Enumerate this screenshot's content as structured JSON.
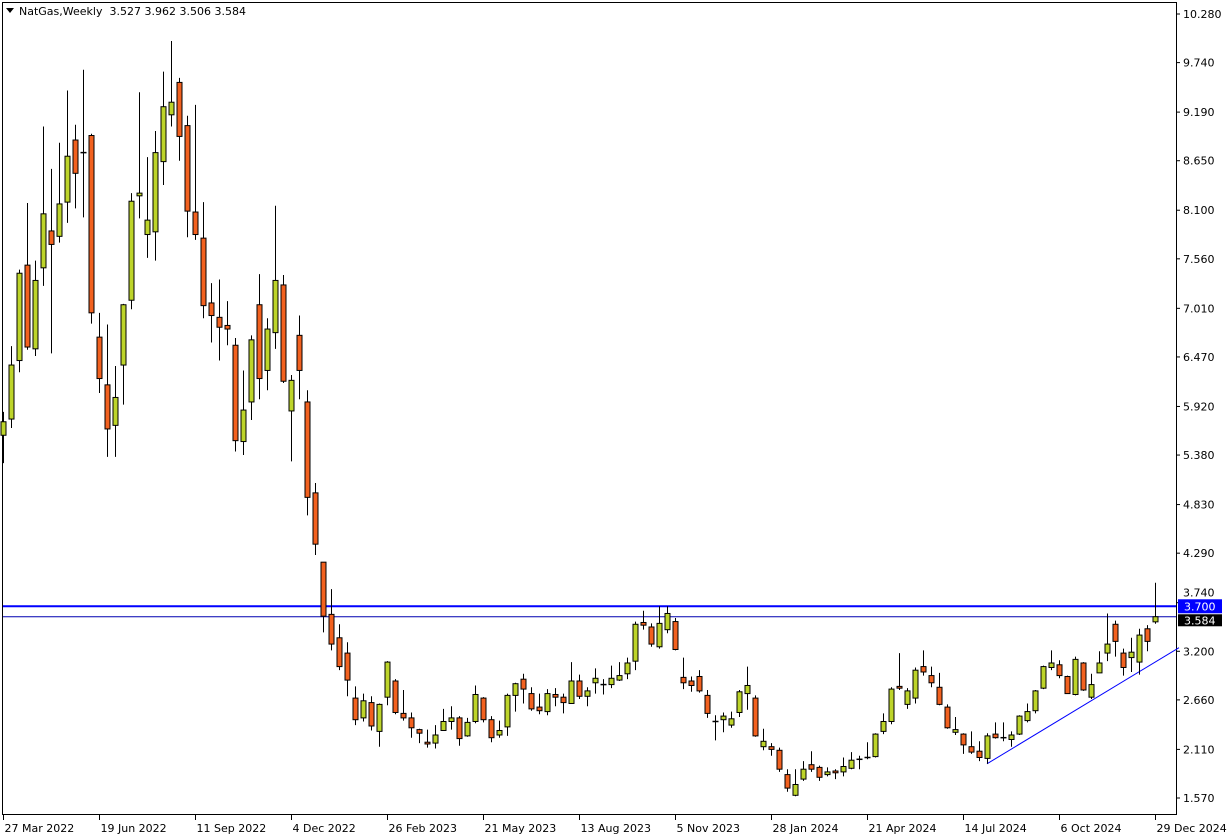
{
  "header": {
    "symbol_timeframe": "NatGas,Weekly",
    "ohlc_readout": "3.527 3.962 3.506 3.584"
  },
  "colors": {
    "bull": "#bdd42a",
    "bear": "#f2611f",
    "outline": "#000000",
    "resistance_line": "#0000ff",
    "bid_line": "#0000b0",
    "trendline": "#0000ff",
    "resistance_label_bg": "#0000ff",
    "bid_label_bg": "#000000"
  },
  "chart_data": {
    "type": "candlestick",
    "title": "NatGas,Weekly",
    "ylim": [
      1.57,
      10.28
    ],
    "y_ticks": [
      "10.280",
      "9.740",
      "9.190",
      "8.650",
      "8.100",
      "7.560",
      "7.010",
      "6.470",
      "5.920",
      "5.380",
      "4.830",
      "4.290",
      "3.740",
      "3.200",
      "2.660",
      "2.110",
      "1.570"
    ],
    "x_ticks": [
      {
        "date": "2022-03-27",
        "label": "27 Mar 2022"
      },
      {
        "date": "2022-06-19",
        "label": "19 Jun 2022"
      },
      {
        "date": "2022-09-11",
        "label": "11 Sep 2022"
      },
      {
        "date": "2022-12-04",
        "label": "4 Dec 2022"
      },
      {
        "date": "2023-02-26",
        "label": "26 Feb 2023"
      },
      {
        "date": "2023-05-21",
        "label": "21 May 2023"
      },
      {
        "date": "2023-08-13",
        "label": "13 Aug 2023"
      },
      {
        "date": "2023-11-05",
        "label": "5 Nov 2023"
      },
      {
        "date": "2024-01-28",
        "label": "28 Jan 2024"
      },
      {
        "date": "2024-04-21",
        "label": "21 Apr 2024"
      },
      {
        "date": "2024-07-14",
        "label": "14 Jul 2024"
      },
      {
        "date": "2024-10-06",
        "label": "6 Oct 2024"
      },
      {
        "date": "2024-12-29",
        "label": "29 Dec 2024"
      }
    ],
    "horizontal_lines": [
      {
        "price": 3.7,
        "label": "3.700",
        "style": "thick"
      },
      {
        "price": 3.584,
        "label": "3.584",
        "style": "thin"
      }
    ],
    "trendline": {
      "from": {
        "date": "2024-08-04",
        "price": 1.95
      },
      "to": {
        "date": "2025-01-19",
        "price": 3.24
      }
    },
    "candle_fields": [
      "date",
      "open",
      "high",
      "low",
      "close"
    ],
    "candles": [
      [
        "2022-03-27",
        5.6,
        5.86,
        5.29,
        5.75
      ],
      [
        "2022-04-03",
        5.78,
        6.59,
        5.68,
        6.38
      ],
      [
        "2022-04-10",
        6.43,
        7.44,
        6.3,
        7.4
      ],
      [
        "2022-04-17",
        7.49,
        8.18,
        6.55,
        6.58
      ],
      [
        "2022-04-24",
        6.56,
        7.54,
        6.48,
        7.32
      ],
      [
        "2022-05-01",
        7.46,
        9.03,
        7.26,
        8.06
      ],
      [
        "2022-05-08",
        7.87,
        8.56,
        6.51,
        7.72
      ],
      [
        "2022-05-15",
        7.81,
        8.85,
        7.74,
        8.17
      ],
      [
        "2022-05-22",
        8.19,
        9.43,
        7.96,
        8.7
      ],
      [
        "2022-05-29",
        8.88,
        9.05,
        8.12,
        8.51
      ],
      [
        "2022-06-05",
        8.74,
        9.66,
        8.02,
        8.74
      ],
      [
        "2022-06-12",
        8.93,
        8.95,
        6.84,
        6.96
      ],
      [
        "2022-06-19",
        6.69,
        6.96,
        6.07,
        6.23
      ],
      [
        "2022-06-26",
        6.16,
        6.83,
        5.36,
        5.67
      ],
      [
        "2022-07-03",
        5.71,
        6.37,
        5.36,
        6.02
      ],
      [
        "2022-07-10",
        6.38,
        7.06,
        5.94,
        7.05
      ],
      [
        "2022-07-17",
        7.1,
        8.29,
        7.0,
        8.2
      ],
      [
        "2022-07-24",
        8.26,
        9.41,
        8.01,
        8.29
      ],
      [
        "2022-07-31",
        7.83,
        8.69,
        7.57,
        7.99
      ],
      [
        "2022-08-07",
        7.86,
        8.98,
        7.54,
        8.74
      ],
      [
        "2022-08-14",
        8.64,
        9.64,
        8.38,
        9.25
      ],
      [
        "2022-08-21",
        9.16,
        9.98,
        9.03,
        9.3
      ],
      [
        "2022-08-28",
        9.52,
        9.57,
        8.65,
        8.92
      ],
      [
        "2022-09-04",
        9.04,
        9.15,
        7.8,
        8.09
      ],
      [
        "2022-09-11",
        8.08,
        9.27,
        7.77,
        7.83
      ],
      [
        "2022-09-18",
        7.79,
        8.19,
        6.9,
        7.04
      ],
      [
        "2022-09-25",
        7.07,
        7.29,
        6.63,
        6.93
      ],
      [
        "2022-10-02",
        6.91,
        7.33,
        6.43,
        6.8
      ],
      [
        "2022-10-09",
        6.82,
        7.09,
        6.6,
        6.78
      ],
      [
        "2022-10-16",
        6.6,
        6.68,
        5.42,
        5.54
      ],
      [
        "2022-10-23",
        5.53,
        6.32,
        5.38,
        5.88
      ],
      [
        "2022-10-30",
        5.97,
        6.71,
        5.77,
        6.66
      ],
      [
        "2022-11-06",
        7.05,
        7.39,
        6.0,
        6.23
      ],
      [
        "2022-11-13",
        6.32,
        6.9,
        6.1,
        6.78
      ],
      [
        "2022-11-20",
        6.74,
        8.15,
        6.56,
        7.32
      ],
      [
        "2022-11-27",
        7.27,
        7.38,
        6.18,
        6.2
      ],
      [
        "2022-12-04",
        5.87,
        6.27,
        5.31,
        6.21
      ],
      [
        "2022-12-11",
        6.71,
        6.93,
        6.0,
        6.32
      ],
      [
        "2022-12-18",
        5.97,
        6.1,
        4.71,
        4.91
      ],
      [
        "2022-12-25",
        4.96,
        5.07,
        4.27,
        4.39
      ],
      [
        "2023-01-01",
        4.19,
        4.19,
        3.41,
        3.59
      ],
      [
        "2023-01-08",
        3.61,
        3.89,
        3.21,
        3.28
      ],
      [
        "2023-01-15",
        3.35,
        3.5,
        2.99,
        3.03
      ],
      [
        "2023-01-22",
        3.18,
        3.3,
        2.7,
        2.88
      ],
      [
        "2023-01-29",
        2.68,
        2.81,
        2.38,
        2.44
      ],
      [
        "2023-02-05",
        2.46,
        2.73,
        2.42,
        2.65
      ],
      [
        "2023-02-12",
        2.63,
        2.7,
        2.32,
        2.37
      ],
      [
        "2023-02-19",
        2.31,
        2.62,
        2.14,
        2.61
      ],
      [
        "2023-02-26",
        2.69,
        3.09,
        2.6,
        3.08
      ],
      [
        "2023-03-05",
        2.87,
        2.89,
        2.5,
        2.52
      ],
      [
        "2023-03-12",
        2.51,
        2.77,
        2.43,
        2.46
      ],
      [
        "2023-03-19",
        2.46,
        2.52,
        2.24,
        2.35
      ],
      [
        "2023-03-26",
        2.33,
        2.34,
        2.18,
        2.29
      ],
      [
        "2023-04-02",
        2.19,
        2.33,
        2.13,
        2.17
      ],
      [
        "2023-04-09",
        2.18,
        2.38,
        2.12,
        2.27
      ],
      [
        "2023-04-16",
        2.32,
        2.56,
        2.32,
        2.42
      ],
      [
        "2023-04-23",
        2.42,
        2.59,
        2.33,
        2.46
      ],
      [
        "2023-04-30",
        2.46,
        2.48,
        2.15,
        2.23
      ],
      [
        "2023-05-07",
        2.26,
        2.46,
        2.25,
        2.41
      ],
      [
        "2023-05-14",
        2.42,
        2.82,
        2.4,
        2.72
      ],
      [
        "2023-05-21",
        2.68,
        2.69,
        2.41,
        2.44
      ],
      [
        "2023-05-28",
        2.44,
        2.48,
        2.19,
        2.24
      ],
      [
        "2023-06-04",
        2.27,
        2.43,
        2.24,
        2.32
      ],
      [
        "2023-06-11",
        2.36,
        2.73,
        2.26,
        2.71
      ],
      [
        "2023-06-18",
        2.71,
        2.85,
        2.53,
        2.84
      ],
      [
        "2023-06-25",
        2.89,
        2.95,
        2.62,
        2.78
      ],
      [
        "2023-07-02",
        2.73,
        2.8,
        2.54,
        2.56
      ],
      [
        "2023-07-09",
        2.58,
        2.73,
        2.5,
        2.54
      ],
      [
        "2023-07-16",
        2.53,
        2.78,
        2.49,
        2.73
      ],
      [
        "2023-07-23",
        2.72,
        2.79,
        2.59,
        2.69
      ],
      [
        "2023-07-30",
        2.69,
        2.73,
        2.51,
        2.63
      ],
      [
        "2023-08-06",
        2.62,
        3.08,
        2.62,
        2.87
      ],
      [
        "2023-08-13",
        2.87,
        2.94,
        2.67,
        2.7
      ],
      [
        "2023-08-20",
        2.7,
        2.8,
        2.59,
        2.76
      ],
      [
        "2023-08-27",
        2.85,
        3.01,
        2.73,
        2.9
      ],
      [
        "2023-09-03",
        2.83,
        2.89,
        2.72,
        2.83
      ],
      [
        "2023-09-10",
        2.83,
        3.04,
        2.79,
        2.9
      ],
      [
        "2023-09-17",
        2.88,
        3.08,
        2.87,
        2.93
      ],
      [
        "2023-09-24",
        2.95,
        3.13,
        2.89,
        3.07
      ],
      [
        "2023-10-01",
        3.09,
        3.53,
        2.99,
        3.5
      ],
      [
        "2023-10-08",
        3.52,
        3.65,
        3.44,
        3.49
      ],
      [
        "2023-10-15",
        3.47,
        3.51,
        3.25,
        3.28
      ],
      [
        "2023-10-22",
        3.25,
        3.7,
        3.23,
        3.51
      ],
      [
        "2023-10-29",
        3.44,
        3.7,
        3.4,
        3.62
      ],
      [
        "2023-11-05",
        3.53,
        3.57,
        3.21,
        3.22
      ],
      [
        "2023-11-12",
        2.91,
        3.13,
        2.78,
        2.85
      ],
      [
        "2023-11-19",
        2.87,
        2.92,
        2.75,
        2.82
      ],
      [
        "2023-11-26",
        2.92,
        2.99,
        2.74,
        2.76
      ],
      [
        "2023-12-03",
        2.71,
        2.77,
        2.46,
        2.51
      ],
      [
        "2023-12-10",
        2.42,
        2.49,
        2.21,
        2.42
      ],
      [
        "2023-12-17",
        2.44,
        2.52,
        2.3,
        2.48
      ],
      [
        "2023-12-24",
        2.38,
        2.53,
        2.35,
        2.45
      ],
      [
        "2023-12-31",
        2.52,
        2.77,
        2.47,
        2.75
      ],
      [
        "2024-01-07",
        2.73,
        3.03,
        2.55,
        2.82
      ],
      [
        "2024-01-14",
        2.68,
        2.71,
        2.25,
        2.26
      ],
      [
        "2024-01-21",
        2.14,
        2.34,
        2.1,
        2.2
      ],
      [
        "2024-01-28",
        2.14,
        2.18,
        2.04,
        2.11
      ],
      [
        "2024-02-04",
        2.1,
        2.13,
        1.86,
        1.89
      ],
      [
        "2024-02-11",
        1.83,
        1.89,
        1.64,
        1.68
      ],
      [
        "2024-02-18",
        1.6,
        1.89,
        1.59,
        1.72
      ],
      [
        "2024-02-25",
        1.78,
        1.98,
        1.76,
        1.89
      ],
      [
        "2024-03-03",
        1.94,
        2.09,
        1.86,
        1.89
      ],
      [
        "2024-03-10",
        1.91,
        1.93,
        1.76,
        1.8
      ],
      [
        "2024-03-17",
        1.83,
        1.91,
        1.81,
        1.86
      ],
      [
        "2024-03-24",
        1.87,
        1.89,
        1.78,
        1.85
      ],
      [
        "2024-03-31",
        1.86,
        2.02,
        1.81,
        1.92
      ],
      [
        "2024-04-07",
        1.9,
        2.08,
        1.89,
        1.99
      ],
      [
        "2024-04-14",
        2.0,
        2.04,
        1.89,
        2.0
      ],
      [
        "2024-04-21",
        2.02,
        2.19,
        2.0,
        2.01
      ],
      [
        "2024-04-28",
        2.03,
        2.29,
        2.02,
        2.28
      ],
      [
        "2024-05-05",
        2.31,
        2.51,
        2.28,
        2.42
      ],
      [
        "2024-05-12",
        2.42,
        2.8,
        2.39,
        2.78
      ],
      [
        "2024-05-19",
        2.81,
        3.18,
        2.77,
        2.79
      ],
      [
        "2024-05-26",
        2.61,
        2.79,
        2.56,
        2.76
      ],
      [
        "2024-06-02",
        2.68,
        3.02,
        2.62,
        2.99
      ],
      [
        "2024-06-09",
        3.03,
        3.21,
        2.93,
        2.97
      ],
      [
        "2024-06-16",
        2.93,
        3.03,
        2.8,
        2.85
      ],
      [
        "2024-06-23",
        2.8,
        2.96,
        2.6,
        2.61
      ],
      [
        "2024-06-30",
        2.58,
        2.61,
        2.34,
        2.35
      ],
      [
        "2024-07-07",
        2.3,
        2.47,
        2.27,
        2.33
      ],
      [
        "2024-07-14",
        2.28,
        2.29,
        2.06,
        2.16
      ],
      [
        "2024-07-21",
        2.14,
        2.31,
        2.06,
        2.08
      ],
      [
        "2024-07-28",
        2.09,
        2.2,
        1.98,
        2.02
      ],
      [
        "2024-08-04",
        2.01,
        2.29,
        1.95,
        2.26
      ],
      [
        "2024-08-11",
        2.28,
        2.41,
        2.23,
        2.24
      ],
      [
        "2024-08-18",
        2.24,
        2.41,
        2.2,
        2.24
      ],
      [
        "2024-08-25",
        2.22,
        2.31,
        2.14,
        2.27
      ],
      [
        "2024-09-01",
        2.28,
        2.49,
        2.27,
        2.48
      ],
      [
        "2024-09-08",
        2.43,
        2.62,
        2.41,
        2.53
      ],
      [
        "2024-09-15",
        2.54,
        2.77,
        2.51,
        2.76
      ],
      [
        "2024-09-22",
        2.79,
        3.04,
        2.78,
        3.03
      ],
      [
        "2024-09-29",
        3.02,
        3.21,
        2.99,
        3.07
      ],
      [
        "2024-10-06",
        3.05,
        3.1,
        2.9,
        2.93
      ],
      [
        "2024-10-13",
        2.92,
        2.93,
        2.73,
        2.73
      ],
      [
        "2024-10-20",
        2.72,
        3.14,
        2.71,
        3.11
      ],
      [
        "2024-10-27",
        3.07,
        3.08,
        2.76,
        2.77
      ],
      [
        "2024-11-03",
        2.69,
        2.95,
        2.67,
        2.83
      ],
      [
        "2024-11-10",
        2.96,
        3.2,
        2.96,
        3.07
      ],
      [
        "2024-11-17",
        3.18,
        3.62,
        3.09,
        3.28
      ],
      [
        "2024-11-24",
        3.5,
        3.54,
        3.14,
        3.31
      ],
      [
        "2024-12-01",
        3.18,
        3.23,
        2.93,
        3.02
      ],
      [
        "2024-12-08",
        3.13,
        3.35,
        2.97,
        3.19
      ],
      [
        "2024-12-15",
        3.08,
        3.45,
        2.94,
        3.38
      ],
      [
        "2024-12-22",
        3.45,
        3.49,
        3.2,
        3.31
      ],
      [
        "2024-12-29",
        3.527,
        3.962,
        3.506,
        3.584
      ]
    ]
  }
}
